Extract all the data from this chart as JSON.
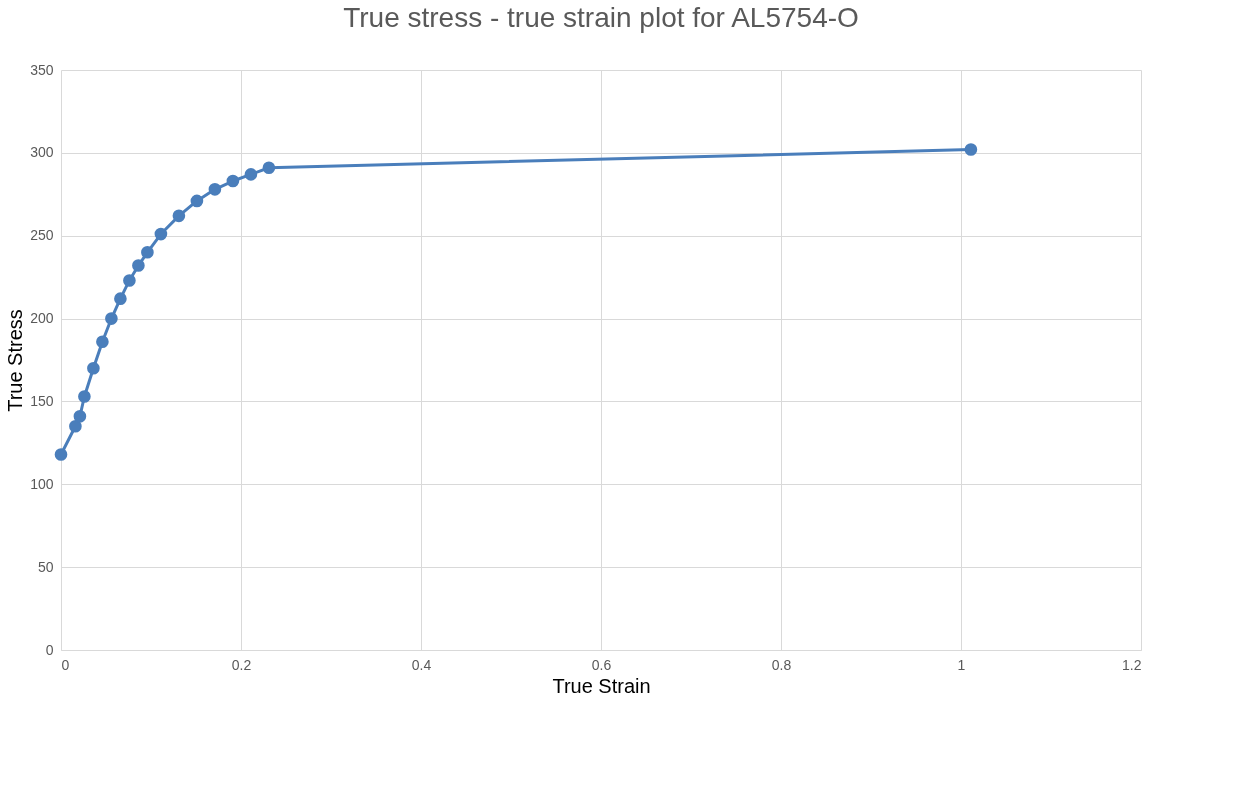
{
  "chart_data": {
    "type": "line",
    "title": "True stress - true strain plot for AL5754-O",
    "xlabel": "True Strain",
    "ylabel": "True Stress",
    "x": [
      0,
      0.016,
      0.021,
      0.026,
      0.036,
      0.046,
      0.056,
      0.066,
      0.076,
      0.086,
      0.096,
      0.111,
      0.131,
      0.151,
      0.171,
      0.191,
      0.211,
      0.231,
      1.011
    ],
    "series": [
      {
        "color": "#4a7ebb",
        "values": [
          118,
          135,
          141,
          153,
          170,
          186,
          200,
          212,
          223,
          232,
          240,
          251,
          262,
          271,
          278,
          283,
          287,
          291,
          302
        ]
      }
    ],
    "xlim": [
      0,
      1.2
    ],
    "xticks": [
      0,
      0.2,
      0.4,
      0.6,
      0.8,
      1,
      1.2
    ],
    "ylim": [
      0,
      350
    ],
    "yticks": [
      0,
      50,
      100,
      150,
      200,
      250,
      300,
      350
    ],
    "grid": true,
    "marker": "circle",
    "line_style": "solid"
  }
}
